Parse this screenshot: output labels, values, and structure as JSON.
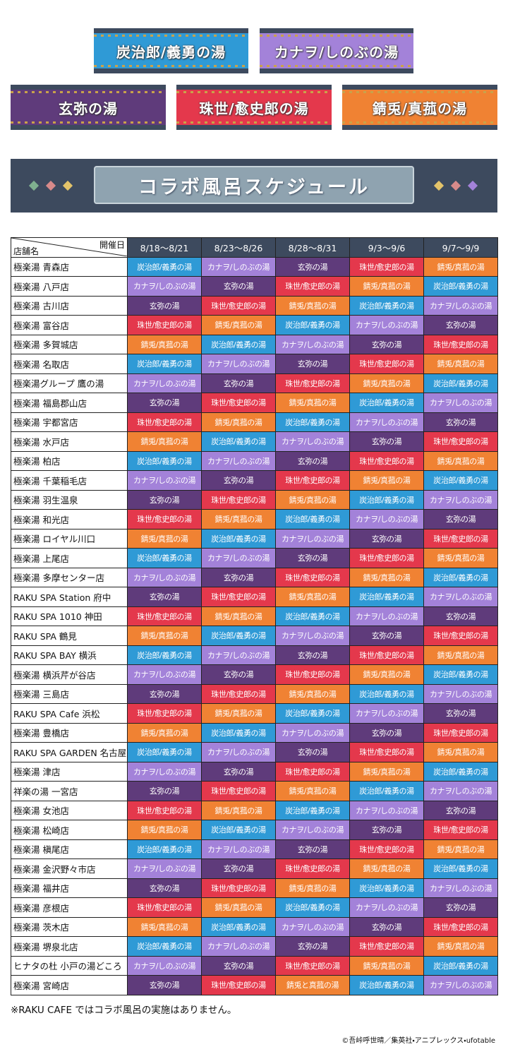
{
  "banners": [
    {
      "label": "炭治郎/義勇の湯",
      "color": "#2f9ad6"
    },
    {
      "label": "カナヲ/しのぶの湯",
      "color": "#a382d9"
    },
    {
      "label": "玄弥の湯",
      "color": "#5f3b7b"
    },
    {
      "label": "珠世/愈史郎の湯",
      "color": "#e4384c"
    },
    {
      "label": "錆兎/真菰の湯",
      "color": "#f08233"
    }
  ],
  "schedule_title": "コラボ風呂スケジュール",
  "table": {
    "corner_top": "開催日",
    "corner_bottom": "店舗名",
    "columns": [
      "8/18～8/21",
      "8/23～8/26",
      "8/28～8/31",
      "9/3～9/6",
      "9/7～9/9"
    ],
    "rows": [
      [
        "極楽湯 青森店",
        "炭治郎/義勇の湯",
        "カナヲ/しのぶの湯",
        "玄弥の湯",
        "珠世/愈史郎の湯",
        "錆兎/真菰の湯"
      ],
      [
        "極楽湯 八戸店",
        "カナヲ/しのぶの湯",
        "玄弥の湯",
        "珠世/愈史郎の湯",
        "錆兎/真菰の湯",
        "炭治郎/義勇の湯"
      ],
      [
        "極楽湯 古川店",
        "玄弥の湯",
        "珠世/愈史郎の湯",
        "錆兎/真菰の湯",
        "炭治郎/義勇の湯",
        "カナヲ/しのぶの湯"
      ],
      [
        "極楽湯 富谷店",
        "珠世/愈史郎の湯",
        "錆兎/真菰の湯",
        "炭治郎/義勇の湯",
        "カナヲ/しのぶの湯",
        "玄弥の湯"
      ],
      [
        "極楽湯 多賀城店",
        "錆兎/真菰の湯",
        "炭治郎/義勇の湯",
        "カナヲ/しのぶの湯",
        "玄弥の湯",
        "珠世/愈史郎の湯"
      ],
      [
        "極楽湯 名取店",
        "炭治郎/義勇の湯",
        "カナヲ/しのぶの湯",
        "玄弥の湯",
        "珠世/愈史郎の湯",
        "錆兎/真菰の湯"
      ],
      [
        "極楽湯グループ 鷹の湯",
        "カナヲ/しのぶの湯",
        "玄弥の湯",
        "珠世/愈史郎の湯",
        "錆兎/真菰の湯",
        "炭治郎/義勇の湯"
      ],
      [
        "極楽湯 福島郡山店",
        "玄弥の湯",
        "珠世/愈史郎の湯",
        "錆兎/真菰の湯",
        "炭治郎/義勇の湯",
        "カナヲ/しのぶの湯"
      ],
      [
        "極楽湯 宇都宮店",
        "珠世/愈史郎の湯",
        "錆兎/真菰の湯",
        "炭治郎/義勇の湯",
        "カナヲ/しのぶの湯",
        "玄弥の湯"
      ],
      [
        "極楽湯 水戸店",
        "錆兎/真菰の湯",
        "炭治郎/義勇の湯",
        "カナヲ/しのぶの湯",
        "玄弥の湯",
        "珠世/愈史郎の湯"
      ],
      [
        "極楽湯 柏店",
        "炭治郎/義勇の湯",
        "カナヲ/しのぶの湯",
        "玄弥の湯",
        "珠世/愈史郎の湯",
        "錆兎/真菰の湯"
      ],
      [
        "極楽湯 千葉稲毛店",
        "カナヲ/しのぶの湯",
        "玄弥の湯",
        "珠世/愈史郎の湯",
        "錆兎/真菰の湯",
        "炭治郎/義勇の湯"
      ],
      [
        "極楽湯 羽生温泉",
        "玄弥の湯",
        "珠世/愈史郎の湯",
        "錆兎/真菰の湯",
        "炭治郎/義勇の湯",
        "カナヲ/しのぶの湯"
      ],
      [
        "極楽湯 和光店",
        "珠世/愈史郎の湯",
        "錆兎/真菰の湯",
        "炭治郎/義勇の湯",
        "カナヲ/しのぶの湯",
        "玄弥の湯"
      ],
      [
        "極楽湯 ロイヤル川口",
        "錆兎/真菰の湯",
        "炭治郎/義勇の湯",
        "カナヲ/しのぶの湯",
        "玄弥の湯",
        "珠世/愈史郎の湯"
      ],
      [
        "極楽湯 上尾店",
        "炭治郎/義勇の湯",
        "カナヲ/しのぶの湯",
        "玄弥の湯",
        "珠世/愈史郎の湯",
        "錆兎/真菰の湯"
      ],
      [
        "極楽湯 多摩センター店",
        "カナヲ/しのぶの湯",
        "玄弥の湯",
        "珠世/愈史郎の湯",
        "錆兎/真菰の湯",
        "炭治郎/義勇の湯"
      ],
      [
        "RAKU SPA Station 府中",
        "玄弥の湯",
        "珠世/愈史郎の湯",
        "錆兎/真菰の湯",
        "炭治郎/義勇の湯",
        "カナヲ/しのぶの湯"
      ],
      [
        "RAKU SPA 1010 神田",
        "珠世/愈史郎の湯",
        "錆兎/真菰の湯",
        "炭治郎/義勇の湯",
        "カナヲ/しのぶの湯",
        "玄弥の湯"
      ],
      [
        "RAKU SPA 鶴見",
        "錆兎/真菰の湯",
        "炭治郎/義勇の湯",
        "カナヲ/しのぶの湯",
        "玄弥の湯",
        "珠世/愈史郎の湯"
      ],
      [
        "RAKU SPA BAY 横浜",
        "炭治郎/義勇の湯",
        "カナヲ/しのぶの湯",
        "玄弥の湯",
        "珠世/愈史郎の湯",
        "錆兎/真菰の湯"
      ],
      [
        "極楽湯 横浜芹が谷店",
        "カナヲ/しのぶの湯",
        "玄弥の湯",
        "珠世/愈史郎の湯",
        "錆兎/真菰の湯",
        "炭治郎/義勇の湯"
      ],
      [
        "極楽湯 三島店",
        "玄弥の湯",
        "珠世/愈史郎の湯",
        "錆兎/真菰の湯",
        "炭治郎/義勇の湯",
        "カナヲ/しのぶの湯"
      ],
      [
        "RAKU SPA Cafe 浜松",
        "珠世/愈史郎の湯",
        "錆兎/真菰の湯",
        "炭治郎/義勇の湯",
        "カナヲ/しのぶの湯",
        "玄弥の湯"
      ],
      [
        "極楽湯 豊橋店",
        "錆兎/真菰の湯",
        "炭治郎/義勇の湯",
        "カナヲ/しのぶの湯",
        "玄弥の湯",
        "珠世/愈史郎の湯"
      ],
      [
        "RAKU SPA GARDEN 名古屋",
        "炭治郎/義勇の湯",
        "カナヲ/しのぶの湯",
        "玄弥の湯",
        "珠世/愈史郎の湯",
        "錆兎/真菰の湯"
      ],
      [
        "極楽湯 津店",
        "カナヲ/しのぶの湯",
        "玄弥の湯",
        "珠世/愈史郎の湯",
        "錆兎/真菰の湯",
        "炭治郎/義勇の湯"
      ],
      [
        "祥楽の湯 一宮店",
        "玄弥の湯",
        "珠世/愈史郎の湯",
        "錆兎/真菰の湯",
        "炭治郎/義勇の湯",
        "カナヲ/しのぶの湯"
      ],
      [
        "極楽湯 女池店",
        "珠世/愈史郎の湯",
        "錆兎/真菰の湯",
        "炭治郎/義勇の湯",
        "カナヲ/しのぶの湯",
        "玄弥の湯"
      ],
      [
        "極楽湯 松崎店",
        "錆兎/真菰の湯",
        "炭治郎/義勇の湯",
        "カナヲ/しのぶの湯",
        "玄弥の湯",
        "珠世/愈史郎の湯"
      ],
      [
        "極楽湯 槇尾店",
        "炭治郎/義勇の湯",
        "カナヲ/しのぶの湯",
        "玄弥の湯",
        "珠世/愈史郎の湯",
        "錆兎/真菰の湯"
      ],
      [
        "極楽湯 金沢野々市店",
        "カナヲ/しのぶの湯",
        "玄弥の湯",
        "珠世/愈史郎の湯",
        "錆兎/真菰の湯",
        "炭治郎/義勇の湯"
      ],
      [
        "極楽湯 福井店",
        "玄弥の湯",
        "珠世/愈史郎の湯",
        "錆兎/真菰の湯",
        "炭治郎/義勇の湯",
        "カナヲ/しのぶの湯"
      ],
      [
        "極楽湯 彦根店",
        "珠世/愈史郎の湯",
        "錆兎/真菰の湯",
        "炭治郎/義勇の湯",
        "カナヲ/しのぶの湯",
        "玄弥の湯"
      ],
      [
        "極楽湯 茨木店",
        "錆兎/真菰の湯",
        "炭治郎/義勇の湯",
        "カナヲ/しのぶの湯",
        "玄弥の湯",
        "珠世/愈史郎の湯"
      ],
      [
        "極楽湯 堺泉北店",
        "炭治郎/義勇の湯",
        "カナヲ/しのぶの湯",
        "玄弥の湯",
        "珠世/愈史郎の湯",
        "錆兎/真菰の湯"
      ],
      [
        "ヒナタの杜 小戸の湯どころ",
        "カナヲ/しのぶの湯",
        "玄弥の湯",
        "珠世/愈史郎の湯",
        "錆兎/真菰の湯",
        "炭治郎/義勇の湯"
      ],
      [
        "極楽湯 宮崎店",
        "玄弥の湯",
        "珠世/愈史郎の湯",
        "錆兎と真菰の湯",
        "炭治郎/義勇の湯",
        "カナヲ/しのぶの湯"
      ]
    ]
  },
  "note": "※RAKU CAFE ではコラボ風呂の実施はありません。",
  "copyright": "©吾峠呼世晴／集英社・アニプレックス・ufotable"
}
